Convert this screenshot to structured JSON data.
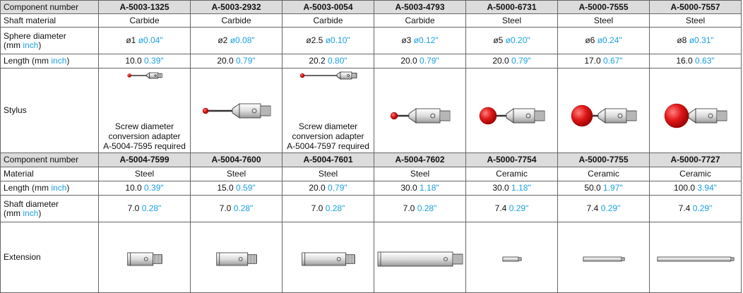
{
  "sections": [
    {
      "header": {
        "label": "Component number",
        "columns": [
          "A-5003-1325",
          "A-5003-2932",
          "A-5003-0054",
          "A-5003-4793",
          "A-5000-6731",
          "A-5000-7555",
          "A-5000-7557"
        ]
      },
      "rows": [
        {
          "label_parts": [
            "Shaft material"
          ],
          "cells": [
            {
              "text": "Carbide"
            },
            {
              "text": "Carbide"
            },
            {
              "text": "Carbide"
            },
            {
              "text": "Carbide"
            },
            {
              "text": "Steel"
            },
            {
              "text": "Steel"
            },
            {
              "text": "Steel"
            }
          ]
        },
        {
          "label_parts": [
            "Sphere diameter",
            "(mm ",
            "inch",
            ")"
          ],
          "cells": [
            {
              "mm": "ø1 ",
              "inch": "ø0.04\""
            },
            {
              "mm": "ø2 ",
              "inch": "ø0.08\""
            },
            {
              "mm": "ø2.5 ",
              "inch": "ø0.10\""
            },
            {
              "mm": "ø3 ",
              "inch": "ø0.12\""
            },
            {
              "mm": "ø5 ",
              "inch": "ø0.20\""
            },
            {
              "mm": "ø6 ",
              "inch": "ø0.24\""
            },
            {
              "mm": "ø8 ",
              "inch": "ø0.31\""
            }
          ]
        },
        {
          "label_parts": [
            "Length (mm ",
            "inch",
            ")"
          ],
          "cells": [
            {
              "mm": "10.0 ",
              "inch": "0.39\""
            },
            {
              "mm": "20.0 ",
              "inch": "0.79\""
            },
            {
              "mm": "20.2 ",
              "inch": "0.80\""
            },
            {
              "mm": "20.0 ",
              "inch": "0.79\""
            },
            {
              "mm": "20.0 ",
              "inch": "0.79\""
            },
            {
              "mm": "17.0 ",
              "inch": "0.67\""
            },
            {
              "mm": "16.0 ",
              "inch": "0.63\""
            }
          ]
        },
        {
          "label_parts": [
            "Stylus"
          ],
          "cells": [
            {
              "note": [
                "Screw diameter",
                "conversion adapter",
                "A-5004-7595 required"
              ]
            },
            null,
            {
              "note": [
                "Screw diameter",
                "conversion adapter",
                "A-5004-7597 required"
              ]
            },
            null,
            null,
            null,
            null
          ]
        }
      ]
    },
    {
      "header": {
        "label": "Component number",
        "columns": [
          "A-5004-7599",
          "A-5004-7600",
          "A-5004-7601",
          "A-5004-7602",
          "A-5000-7754",
          "A-5000-7755",
          "A-5000-7727"
        ]
      },
      "rows": [
        {
          "label_parts": [
            "Material"
          ],
          "cells": [
            {
              "text": "Steel"
            },
            {
              "text": "Steel"
            },
            {
              "text": "Steel"
            },
            {
              "text": "Steel"
            },
            {
              "text": "Ceramic"
            },
            {
              "text": "Ceramic"
            },
            {
              "text": "Ceramic"
            }
          ]
        },
        {
          "label_parts": [
            "Length (mm ",
            "inch",
            ")"
          ],
          "cells": [
            {
              "mm": "10.0 ",
              "inch": "0.39\""
            },
            {
              "mm": "15.0 ",
              "inch": "0.59\""
            },
            {
              "mm": "20.0 ",
              "inch": "0.79\""
            },
            {
              "mm": "30.0 ",
              "inch": "1.18\""
            },
            {
              "mm": "30.0 ",
              "inch": "1.18\""
            },
            {
              "mm": "50.0 ",
              "inch": "1.97\""
            },
            {
              "mm": "100.0 ",
              "inch": "3.94\""
            }
          ]
        },
        {
          "label_parts": [
            "Shaft diameter",
            "(mm ",
            "inch",
            ")"
          ],
          "cells": [
            {
              "mm": "7.0 ",
              "inch": "0.28\""
            },
            {
              "mm": "7.0 ",
              "inch": "0.28\""
            },
            {
              "mm": "7.0 ",
              "inch": "0.28\""
            },
            {
              "mm": "7.0 ",
              "inch": "0.28\""
            },
            {
              "mm": "7.4 ",
              "inch": "0.29\""
            },
            {
              "mm": "7.4 ",
              "inch": "0.29\""
            },
            {
              "mm": "7.4 ",
              "inch": "0.29\""
            }
          ]
        },
        {
          "label_parts": [
            "Extension"
          ],
          "cells": [
            null,
            null,
            null,
            null,
            null,
            null,
            null
          ]
        }
      ]
    }
  ]
}
